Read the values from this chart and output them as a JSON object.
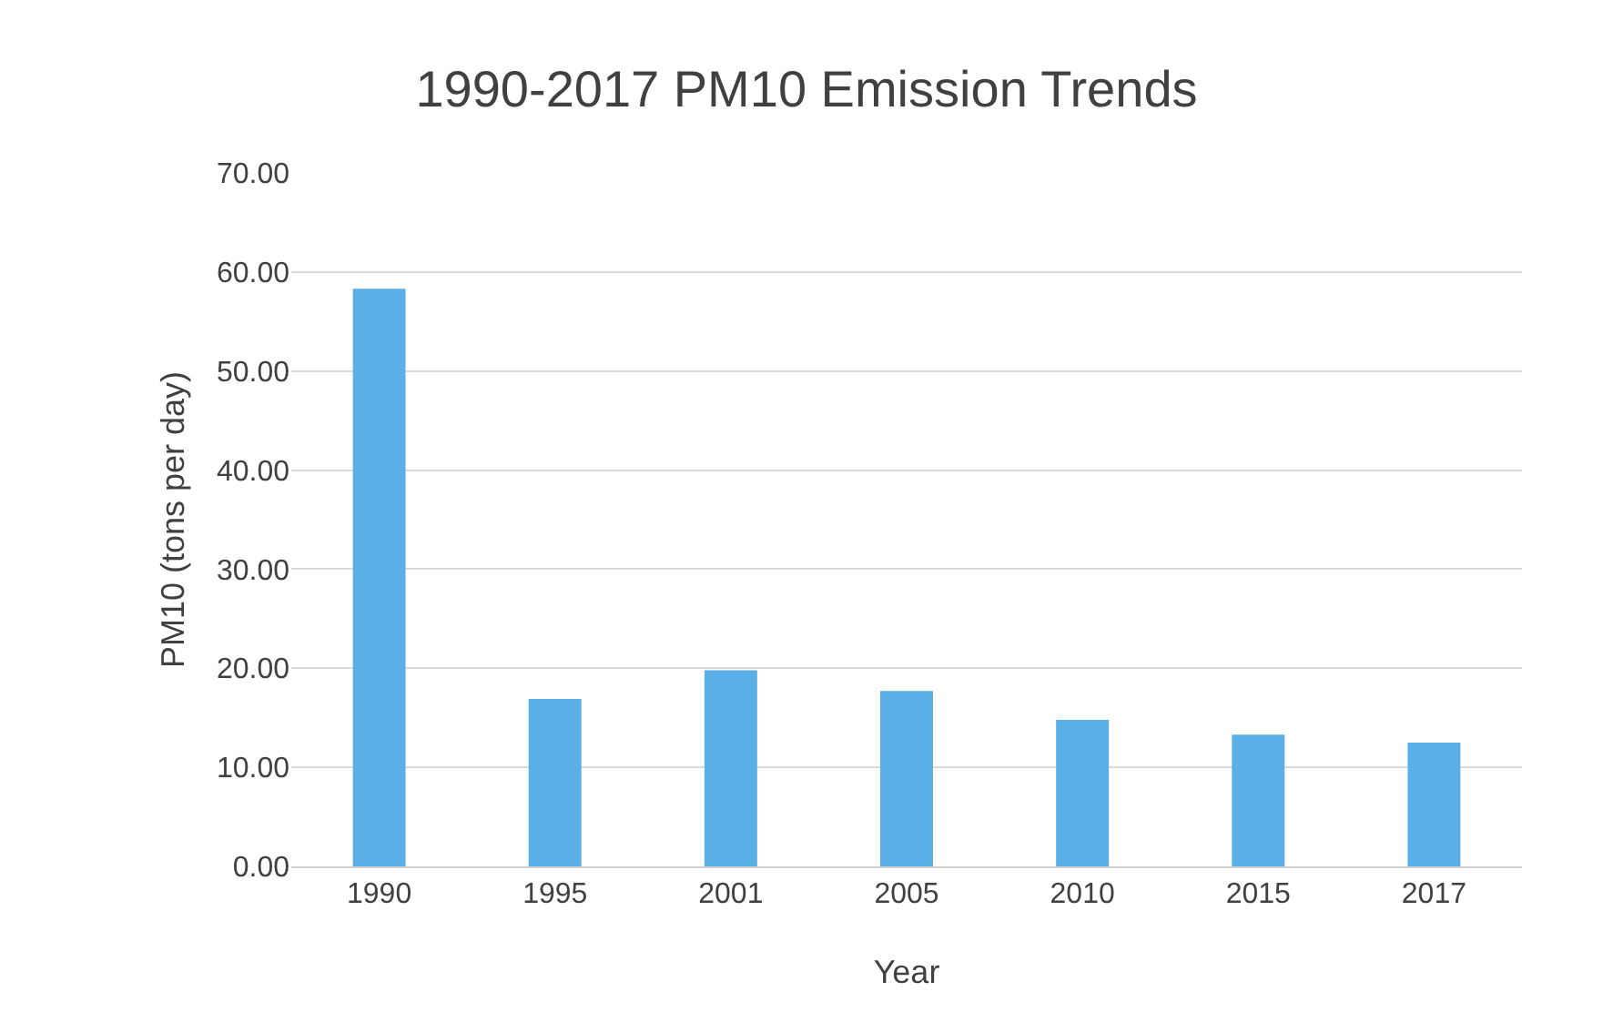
{
  "chart_data": {
    "type": "bar",
    "title": "1990-2017 PM10 Emission Trends",
    "xlabel": "Year",
    "ylabel": "PM10 (tons per day)",
    "categories": [
      "1990",
      "1995",
      "2001",
      "2005",
      "2010",
      "2015",
      "2017"
    ],
    "values": [
      58.3,
      16.9,
      19.8,
      17.7,
      14.8,
      13.3,
      12.5
    ],
    "color": "#5aafe6",
    "ylim": [
      0,
      70
    ],
    "yticks": [
      {
        "value": 0,
        "label": "0.00"
      },
      {
        "value": 10,
        "label": "10.00"
      },
      {
        "value": 20,
        "label": "20.00"
      },
      {
        "value": 30,
        "label": "30.00"
      },
      {
        "value": 40,
        "label": "40.00"
      },
      {
        "value": 50,
        "label": "50.00"
      },
      {
        "value": 60,
        "label": "60.00"
      },
      {
        "value": 70,
        "label": "70.00"
      }
    ],
    "grid": "y"
  }
}
